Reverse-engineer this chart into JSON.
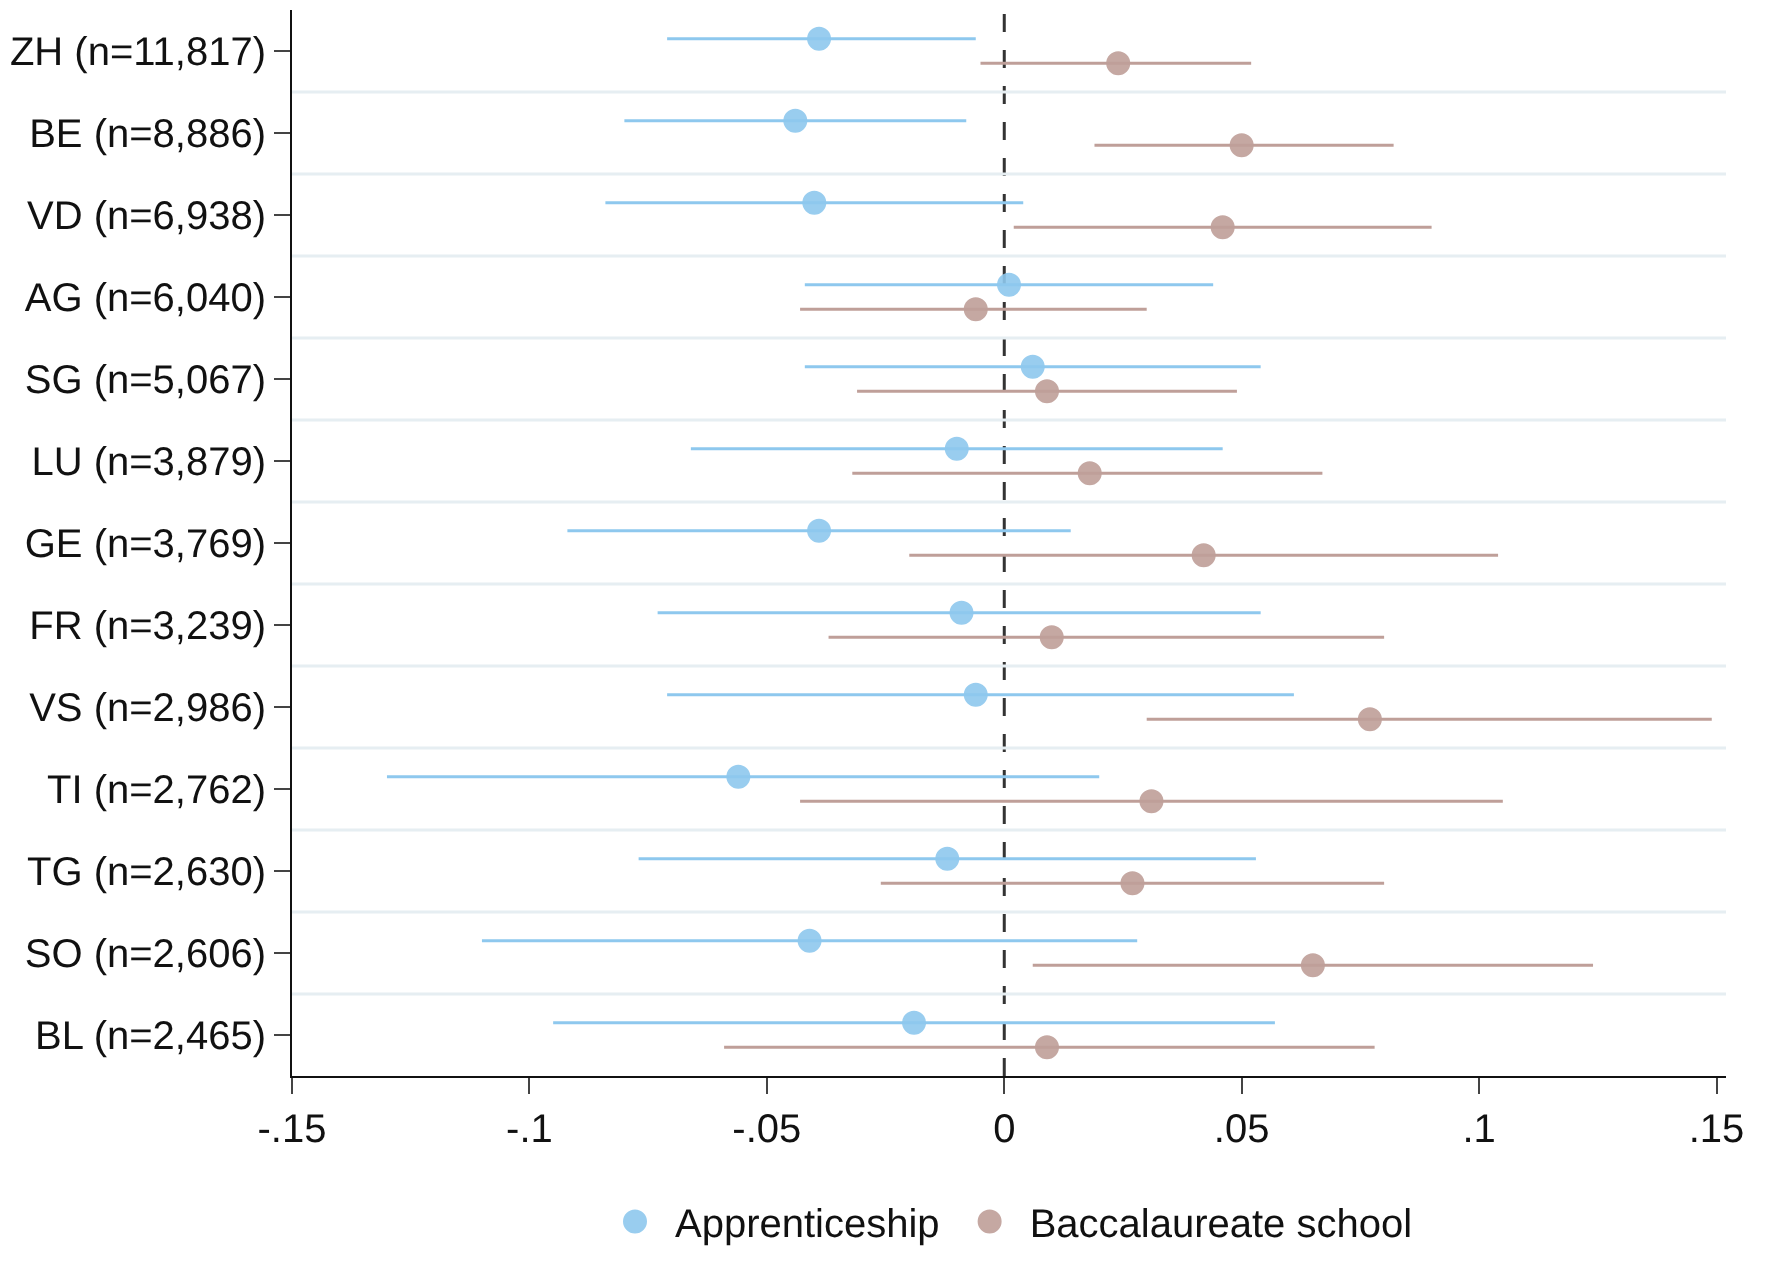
{
  "chart_data": {
    "type": "scatter",
    "orientation": "horizontal",
    "categories": [
      "ZH (n=11,817)",
      "BE (n=8,886)",
      "VD (n=6,938)",
      "AG (n=6,040)",
      "SG (n=5,067)",
      "LU (n=3,879)",
      "GE (n=3,769)",
      "FR (n=3,239)",
      "VS (n=2,986)",
      "TI (n=2,762)",
      "TG (n=2,630)",
      "SO (n=2,606)",
      "BL (n=2,465)"
    ],
    "series": [
      {
        "name": "Apprenticeship",
        "color": "#8ec8ee",
        "values": [
          -0.039,
          -0.044,
          -0.04,
          0.001,
          0.006,
          -0.01,
          -0.039,
          -0.009,
          -0.006,
          -0.056,
          -0.012,
          -0.041,
          -0.019
        ],
        "errors": [
          [
            -0.071,
            -0.006
          ],
          [
            -0.08,
            -0.008
          ],
          [
            -0.084,
            0.004
          ],
          [
            -0.042,
            0.044
          ],
          [
            -0.042,
            0.054
          ],
          [
            -0.066,
            0.046
          ],
          [
            -0.092,
            0.014
          ],
          [
            -0.073,
            0.054
          ],
          [
            -0.071,
            0.061
          ],
          [
            -0.13,
            0.02
          ],
          [
            -0.077,
            0.053
          ],
          [
            -0.11,
            0.028
          ],
          [
            -0.095,
            0.057
          ]
        ]
      },
      {
        "name": "Baccalaureate school",
        "color": "#bf9f99",
        "values": [
          0.024,
          0.05,
          0.046,
          -0.006,
          0.009,
          0.018,
          0.042,
          0.01,
          0.077,
          0.031,
          0.027,
          0.065,
          0.009
        ],
        "errors": [
          [
            -0.005,
            0.052
          ],
          [
            0.019,
            0.082
          ],
          [
            0.002,
            0.09
          ],
          [
            -0.043,
            0.03
          ],
          [
            -0.031,
            0.049
          ],
          [
            -0.032,
            0.067
          ],
          [
            -0.02,
            0.104
          ],
          [
            -0.037,
            0.08
          ],
          [
            0.03,
            0.149
          ],
          [
            -0.043,
            0.105
          ],
          [
            -0.026,
            0.08
          ],
          [
            0.006,
            0.124
          ],
          [
            -0.059,
            0.078
          ]
        ]
      }
    ],
    "xlim": [
      -0.15,
      0.152
    ],
    "xticks": [
      {
        "value": -0.15,
        "label": "-.15"
      },
      {
        "value": -0.1,
        "label": "-.1"
      },
      {
        "value": -0.05,
        "label": "-.05"
      },
      0,
      {
        "value": 0.05,
        "label": ".05"
      },
      {
        "value": 0.1,
        "label": ".1"
      },
      {
        "value": 0.15,
        "label": ".15"
      }
    ],
    "ref_lines": [
      {
        "axis": "x",
        "value": 0,
        "color": "#333333",
        "line_style": "dashed"
      }
    ],
    "grid": "y",
    "legend": "bottom",
    "marker": "circle"
  }
}
